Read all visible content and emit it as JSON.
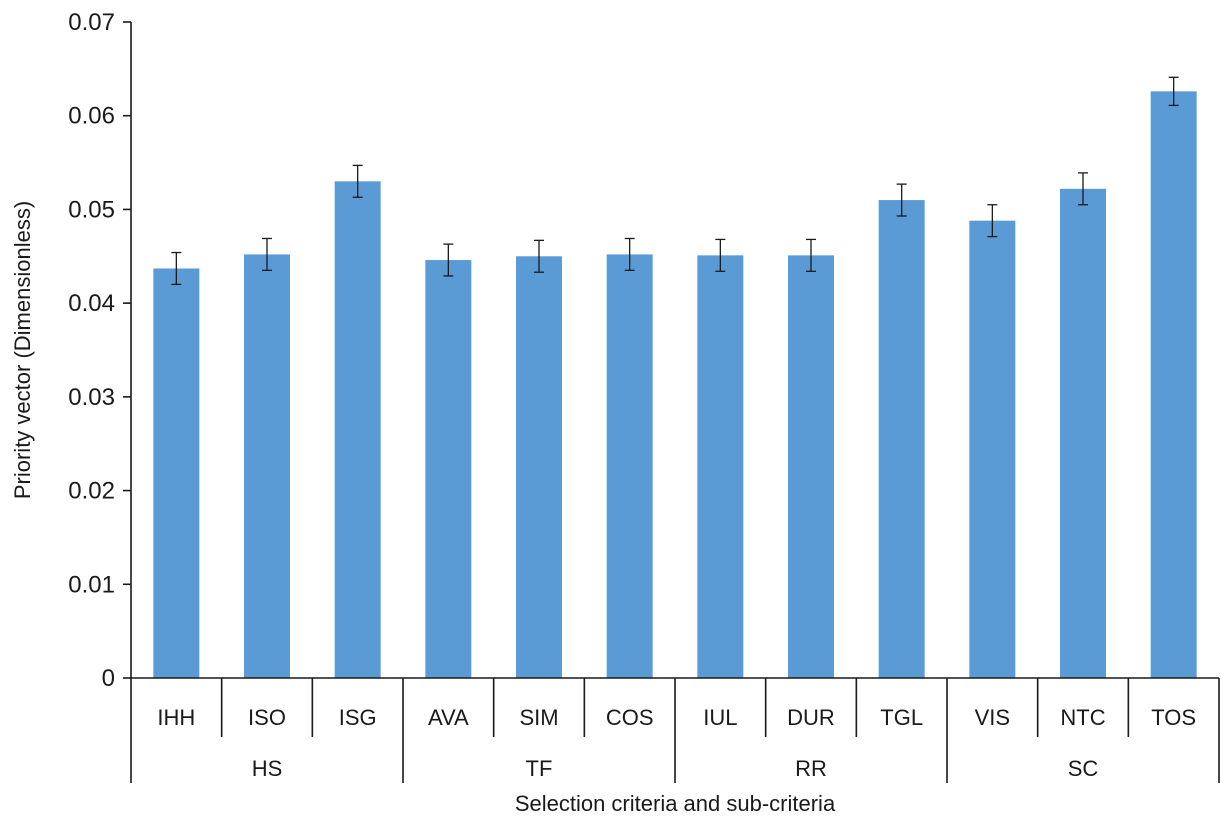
{
  "chart_data": {
    "type": "bar",
    "title": "",
    "xlabel": "Selection criteria and sub-criteria",
    "ylabel": "Priority vector (Dimensionless)",
    "ylim": [
      0,
      0.07
    ],
    "yticks": [
      0,
      0.01,
      0.02,
      0.03,
      0.04,
      0.05,
      0.06,
      0.07
    ],
    "ytick_labels": [
      "0",
      "0.01",
      "0.02",
      "0.03",
      "0.04",
      "0.05",
      "0.06",
      "0.07"
    ],
    "grid": false,
    "legend": "none",
    "color": "#5b9bd5",
    "categories": [
      "IHH",
      "ISO",
      "ISG",
      "AVA",
      "SIM",
      "COS",
      "IUL",
      "DUR",
      "TGL",
      "VIS",
      "NTC",
      "TOS"
    ],
    "groups": [
      {
        "label": "HS",
        "size": 3
      },
      {
        "label": "TF",
        "size": 3
      },
      {
        "label": "RR",
        "size": 3
      },
      {
        "label": "SC",
        "size": 3
      }
    ],
    "values": [
      0.0437,
      0.0452,
      0.053,
      0.0446,
      0.045,
      0.0452,
      0.0451,
      0.0451,
      0.051,
      0.0488,
      0.0522,
      0.0626
    ],
    "error": [
      0.0017,
      0.0017,
      0.0017,
      0.0017,
      0.0017,
      0.0017,
      0.0017,
      0.0017,
      0.0017,
      0.0017,
      0.0017,
      0.0015
    ]
  }
}
